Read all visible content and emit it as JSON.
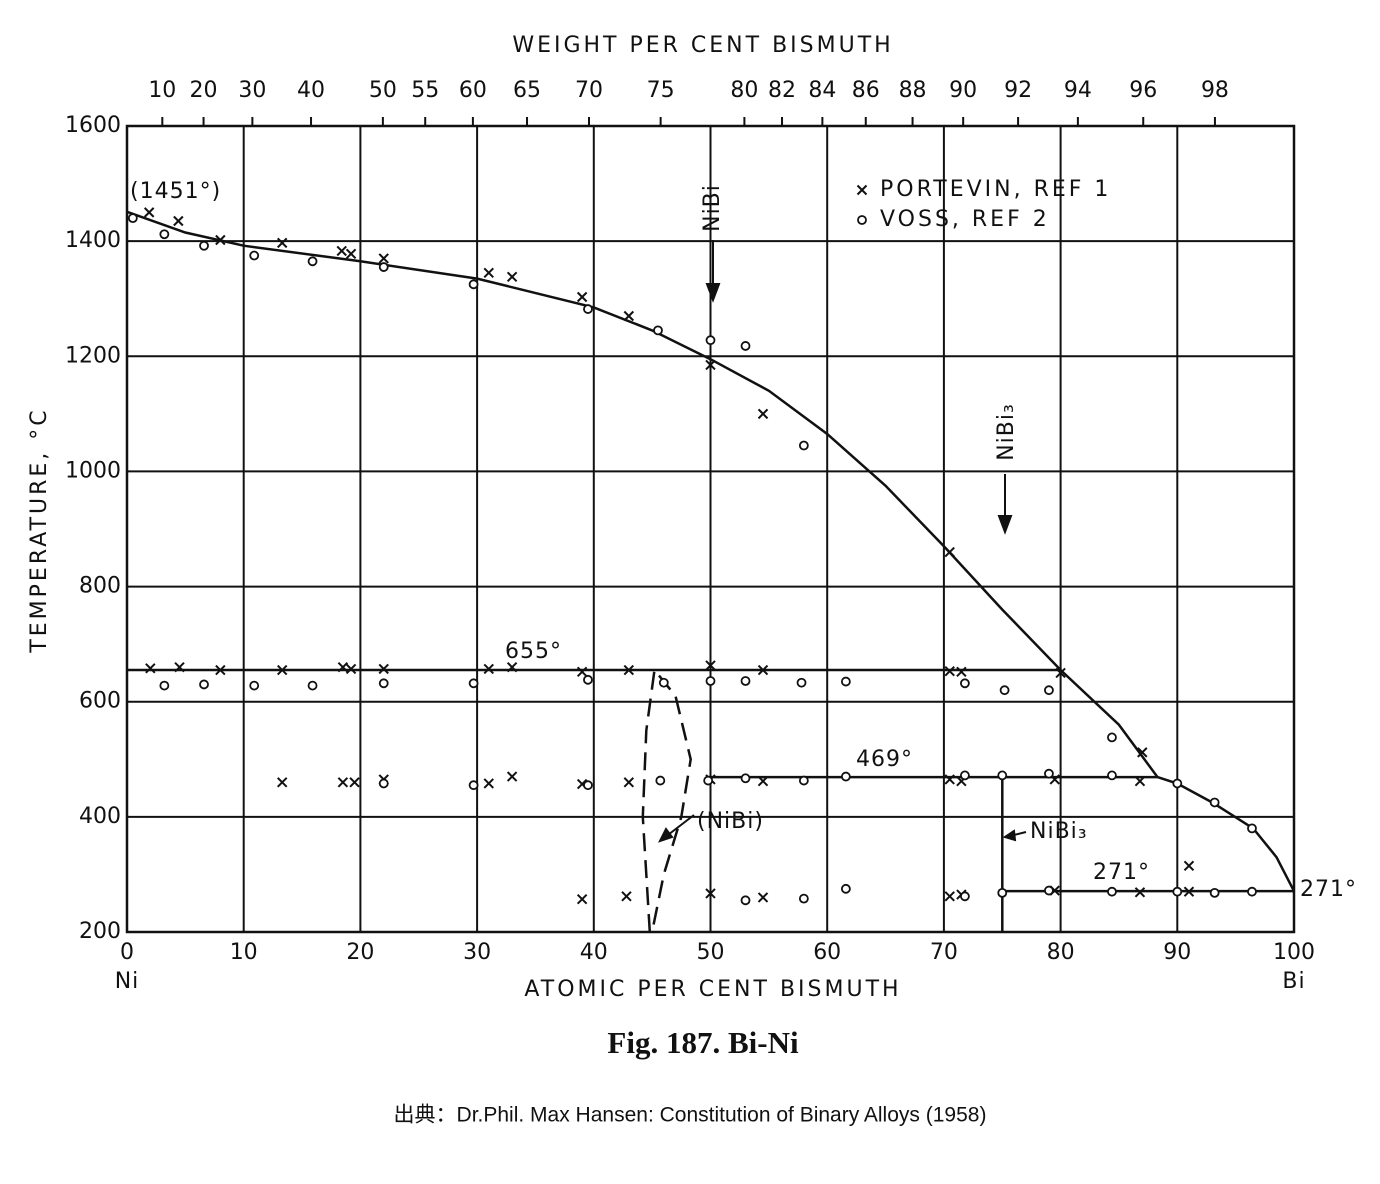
{
  "chart_data": {
    "type": "scatter",
    "title": "Fig. 187. Bi-Ni",
    "source": "出典：Dr.Phil. Max Hansen: Constitution of Binary Alloys (1958)",
    "x_label": "ATOMIC PER CENT BISMUTH",
    "x2_label": "WEIGHT PER CENT BISMUTH",
    "y_label": "TEMPERATURE, °C",
    "xlim": [
      0,
      100
    ],
    "ylim": [
      200,
      1600
    ],
    "xticks": [
      0,
      10,
      20,
      30,
      40,
      50,
      60,
      70,
      80,
      90,
      100
    ],
    "yticks": [
      200,
      400,
      600,
      800,
      1000,
      1200,
      1400,
      1600
    ],
    "x2ticks": [
      10,
      20,
      30,
      40,
      50,
      55,
      60,
      65,
      70,
      75,
      80,
      82,
      84,
      86,
      88,
      90,
      92,
      94,
      96,
      98
    ],
    "grid": true,
    "annotations": [
      "(1451°)",
      "655°",
      "469°",
      "271°",
      "271°",
      "NiBi",
      "NiBi₃",
      "(NiBi)",
      "NiBi₃",
      "Ni",
      "Bi"
    ],
    "series": [
      {
        "name": "PORTEVIN, REF 1",
        "marker": "x",
        "color": "#111111",
        "x": [
          1.9,
          4.4,
          8,
          13.3,
          18.4,
          19.2,
          22,
          31,
          33,
          39,
          43,
          50,
          54.5,
          70.5,
          80,
          2,
          4.5,
          8,
          13.3,
          18.5,
          19.2,
          22,
          31,
          33,
          39,
          43,
          50,
          54.5,
          70.5,
          71.5,
          13.3,
          18.5,
          19.5,
          22,
          31,
          33,
          39,
          43,
          50,
          54.5,
          70.5,
          71.5,
          79.5,
          86.8,
          87,
          39,
          42.8,
          50,
          54.5,
          70.5,
          71.5,
          79.5,
          86.8,
          91,
          91
        ],
        "y": [
          1450,
          1435,
          1402,
          1397,
          1383,
          1378,
          1370,
          1345,
          1338,
          1303,
          1270,
          1185,
          1100,
          860,
          650,
          658,
          660,
          655,
          655,
          660,
          657,
          657,
          657,
          660,
          652,
          655,
          663,
          655,
          653,
          652,
          460,
          460,
          460,
          465,
          458,
          470,
          457,
          460,
          465,
          462,
          465,
          462,
          465,
          462,
          512,
          257,
          262,
          267,
          260,
          262,
          265,
          272,
          269,
          315,
          270
        ]
      },
      {
        "name": "VOSS, REF 2",
        "marker": "o",
        "color": "#111111",
        "x": [
          0.5,
          3.2,
          6.6,
          10.9,
          15.9,
          22,
          29.7,
          39.5,
          45.5,
          50,
          53,
          58,
          3.2,
          6.6,
          10.9,
          15.9,
          22,
          29.7,
          39.5,
          46,
          50,
          53,
          57.8,
          61.6,
          71.8,
          75.2,
          79,
          22,
          29.7,
          39.5,
          45.7,
          49.8,
          53,
          58,
          61.6,
          71.8,
          75,
          79,
          84.4,
          90,
          93.2,
          96.4,
          84.4,
          53,
          58,
          61.6,
          71.8,
          75,
          79,
          84.4,
          90,
          93.2,
          96.4
        ],
        "y": [
          1440,
          1412,
          1392,
          1375,
          1365,
          1355,
          1325,
          1282,
          1245,
          1228,
          1218,
          1045,
          628,
          630,
          628,
          628,
          632,
          632,
          638,
          633,
          636,
          636,
          633,
          635,
          632,
          620,
          620,
          458,
          455,
          455,
          463,
          463,
          467,
          463,
          470,
          472,
          472,
          475,
          472,
          458,
          425,
          380,
          538,
          255,
          258,
          275,
          262,
          268,
          272,
          270,
          270,
          268,
          270
        ]
      }
    ],
    "lines": [
      {
        "x": [
          0,
          5,
          10,
          20,
          30,
          40,
          45,
          50,
          55,
          60,
          65,
          70,
          75,
          80,
          85,
          88.3,
          90,
          93,
          96.5,
          98.5,
          100
        ],
        "y": [
          1451,
          1415,
          1392,
          1365,
          1335,
          1285,
          1245,
          1195,
          1140,
          1065,
          975,
          870,
          760,
          655,
          560,
          469,
          458,
          425,
          380,
          330,
          271
        ]
      },
      {
        "x": [
          0,
          80
        ],
        "y": [
          655,
          655
        ]
      },
      {
        "x": [
          50,
          88.3
        ],
        "y": [
          469,
          469
        ]
      },
      {
        "x": [
          75,
          100
        ],
        "y": [
          271,
          271
        ]
      },
      {
        "x": [
          75,
          75
        ],
        "y": [
          469,
          200
        ]
      },
      {
        "x": [
          44.8,
          44.2,
          44.5,
          45.2,
          47,
          48.3,
          47.5,
          46,
          45
        ],
        "y": [
          200,
          400,
          550,
          655,
          610,
          500,
          400,
          300,
          200
        ],
        "dash": true
      }
    ]
  }
}
